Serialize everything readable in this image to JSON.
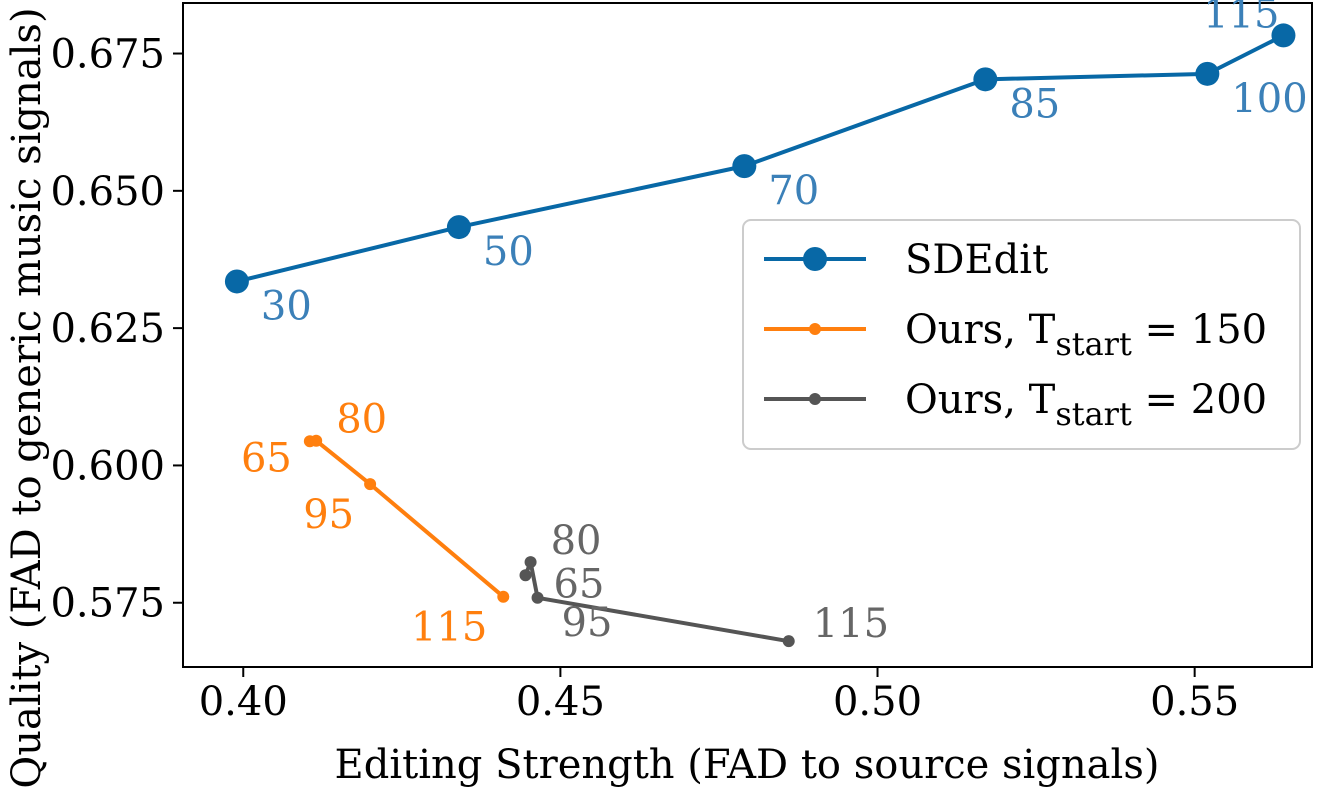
{
  "chart_data": {
    "type": "line",
    "title": "",
    "xlabel": "Editing Strength (FAD to source signals)",
    "ylabel": "Quality (FAD to generic music signals)",
    "xlim": [
      0.3905,
      0.5685
    ],
    "ylim": [
      0.5633,
      0.6842
    ],
    "xticks": [
      0.4,
      0.45,
      0.5,
      0.55
    ],
    "xtick_labels": [
      "0.40",
      "0.45",
      "0.50",
      "0.55"
    ],
    "yticks": [
      0.575,
      0.6,
      0.625,
      0.65,
      0.675
    ],
    "ytick_labels": [
      "0.575",
      "0.600",
      "0.625",
      "0.650",
      "0.675"
    ],
    "grid": false,
    "legend_position": "center-right",
    "series": [
      {
        "name": "SDEdit",
        "legend_main": "SDEdit",
        "legend_sub": "",
        "legend_tail": "",
        "color": "#0868a6",
        "label_color": "#3b80b8",
        "marker": "large",
        "points": [
          {
            "x": 0.399,
            "y": 0.6335,
            "label": "30",
            "pos": "below-right"
          },
          {
            "x": 0.434,
            "y": 0.6434,
            "label": "50",
            "pos": "below-right"
          },
          {
            "x": 0.479,
            "y": 0.6545,
            "label": "70",
            "pos": "below-right"
          },
          {
            "x": 0.517,
            "y": 0.6703,
            "label": "85",
            "pos": "below-right"
          },
          {
            "x": 0.552,
            "y": 0.6713,
            "label": "100",
            "pos": "below-right"
          },
          {
            "x": 0.564,
            "y": 0.6783,
            "label": "115",
            "pos": "above-left"
          }
        ]
      },
      {
        "name": "Ours, T_start = 150",
        "legend_main": "Ours, T",
        "legend_sub": "start",
        "legend_tail": " = 150",
        "color": "#ff7f0e",
        "label_color": "#ff7f0e",
        "marker": "small",
        "points": [
          {
            "x": 0.4105,
            "y": 0.6044,
            "label": "65",
            "pos": "left"
          },
          {
            "x": 0.4115,
            "y": 0.6045,
            "label": "80",
            "pos": "above-right"
          },
          {
            "x": 0.42,
            "y": 0.5966,
            "label": "95",
            "pos": "below-left"
          },
          {
            "x": 0.441,
            "y": 0.5761,
            "label": "115",
            "pos": "below-left"
          }
        ]
      },
      {
        "name": "Ours, T_start = 200",
        "legend_main": "Ours, T",
        "legend_sub": "start",
        "legend_tail": " = 200",
        "color": "#555555",
        "label_color": "#666666",
        "marker": "small",
        "points": [
          {
            "x": 0.4445,
            "y": 0.58,
            "label": "65",
            "pos": "right-low"
          },
          {
            "x": 0.4453,
            "y": 0.5824,
            "label": "80",
            "pos": "above-right"
          },
          {
            "x": 0.4464,
            "y": 0.5759,
            "label": "95",
            "pos": "below-right"
          },
          {
            "x": 0.486,
            "y": 0.568,
            "label": "115",
            "pos": "right-high"
          }
        ]
      }
    ]
  }
}
